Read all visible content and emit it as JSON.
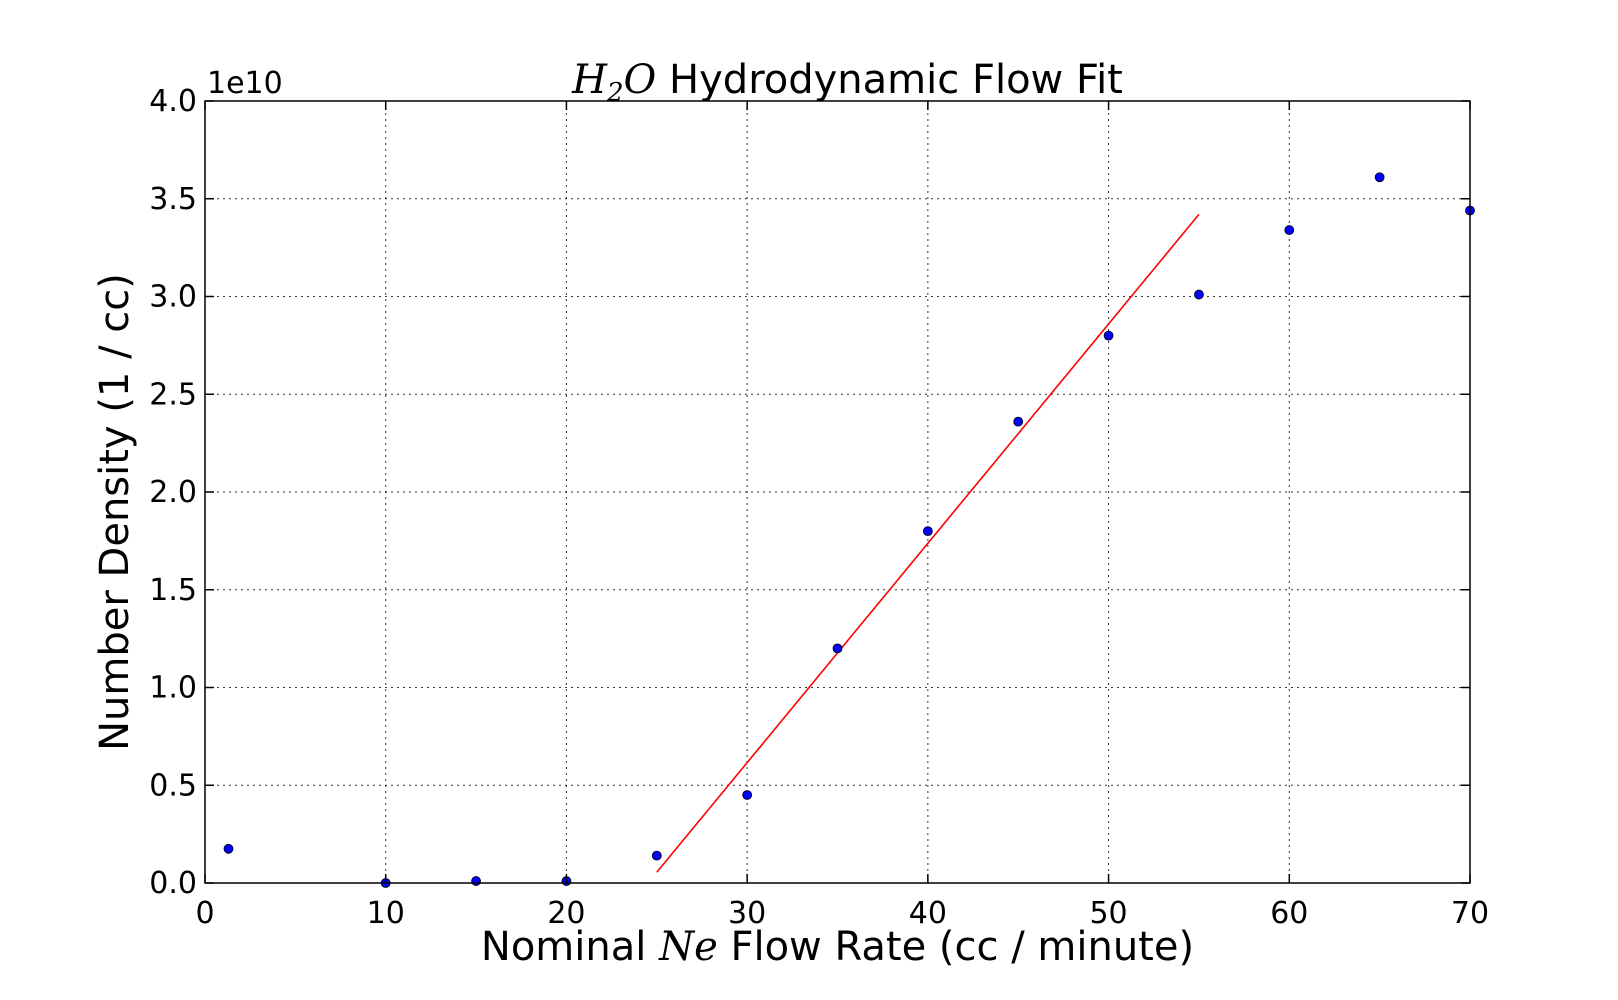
{
  "chart_data": {
    "type": "scatter",
    "title": {
      "math": "H",
      "math_sub": "2",
      "math_tail": "O",
      "text": " Hydrodynamic Flow Fit"
    },
    "xlabel": {
      "pre": "Nominal ",
      "math": "Ne",
      "post": " Flow Rate (cc / minute)"
    },
    "ylabel": "Number Density (1 / cc)",
    "y_offset_label": "1e10",
    "xlim": [
      0,
      70
    ],
    "ylim": [
      0,
      4.0
    ],
    "x_ticks": [
      "0",
      "10",
      "20",
      "30",
      "40",
      "50",
      "60",
      "70"
    ],
    "y_ticks": [
      "0.0",
      "0.5",
      "1.0",
      "1.5",
      "2.0",
      "2.5",
      "3.0",
      "3.5",
      "4.0"
    ],
    "grid": true,
    "series": [
      {
        "kind": "points",
        "color": "#0000ff",
        "x": [
          1.3,
          10,
          15,
          20,
          25,
          30,
          35,
          40,
          45,
          50,
          55,
          60,
          65,
          70
        ],
        "y": [
          0.175,
          0.0,
          0.01,
          0.01,
          0.14,
          0.45,
          1.2,
          1.8,
          2.36,
          2.8,
          3.01,
          3.34,
          3.61,
          3.44
        ]
      },
      {
        "kind": "line",
        "color": "#ff0000",
        "x": [
          25,
          55
        ],
        "y": [
          0.055,
          3.42
        ]
      }
    ]
  }
}
